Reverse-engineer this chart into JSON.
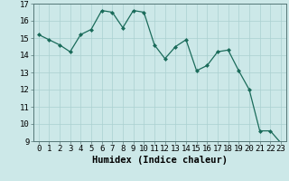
{
  "xlabel": "Humidex (Indice chaleur)",
  "x_values": [
    0,
    1,
    2,
    3,
    4,
    5,
    6,
    7,
    8,
    9,
    10,
    11,
    12,
    13,
    14,
    15,
    16,
    17,
    18,
    19,
    20,
    21,
    22,
    23
  ],
  "y_values": [
    15.2,
    14.9,
    14.6,
    14.2,
    15.2,
    15.5,
    16.6,
    16.5,
    15.6,
    16.6,
    16.5,
    14.6,
    13.8,
    14.5,
    14.9,
    13.1,
    13.4,
    14.2,
    14.3,
    13.1,
    12.0,
    9.6,
    9.6,
    8.9
  ],
  "ylim": [
    9,
    17
  ],
  "xlim": [
    -0.5,
    23.5
  ],
  "yticks": [
    9,
    10,
    11,
    12,
    13,
    14,
    15,
    16,
    17
  ],
  "xticks": [
    0,
    1,
    2,
    3,
    4,
    5,
    6,
    7,
    8,
    9,
    10,
    11,
    12,
    13,
    14,
    15,
    16,
    17,
    18,
    19,
    20,
    21,
    22,
    23
  ],
  "line_color": "#1a6b5a",
  "marker_color": "#1a6b5a",
  "bg_color": "#cce8e8",
  "grid_color": "#aad0d0",
  "border_color": "#557777",
  "xlabel_fontsize": 7.5,
  "tick_fontsize": 6.5
}
